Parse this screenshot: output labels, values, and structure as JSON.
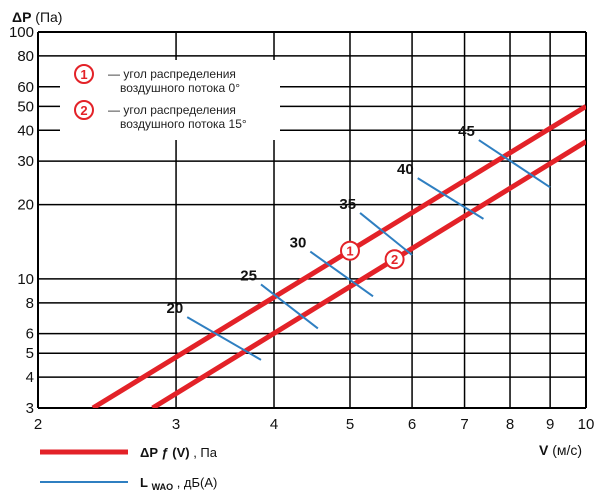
{
  "chart_data": {
    "type": "line",
    "x_scale": "log",
    "y_scale": "log",
    "xlim": [
      2,
      10
    ],
    "ylim": [
      3,
      100
    ],
    "xlabel": "V (м/с)",
    "xlabel_bold": "V",
    "xlabel_unit": "(м/с)",
    "ylabel": "ΔP (Па)",
    "ylabel_bold": "ΔP",
    "ylabel_unit": "(Па)",
    "x_ticks": [
      2,
      3,
      4,
      5,
      6,
      7,
      8,
      9,
      10
    ],
    "y_ticks": [
      3,
      4,
      5,
      6,
      8,
      10,
      20,
      30,
      40,
      50,
      60,
      80,
      100
    ],
    "grid": true,
    "series": [
      {
        "id": "1",
        "color": "#e32228",
        "x": [
          2.35,
          10
        ],
        "y": [
          3,
          50
        ]
      },
      {
        "id": "2",
        "color": "#e32228",
        "x": [
          2.8,
          10
        ],
        "y": [
          3,
          36
        ]
      }
    ],
    "noise_lines": [
      {
        "label": "20",
        "x": [
          3.1,
          3.85
        ],
        "y": [
          7.0,
          4.7
        ]
      },
      {
        "label": "25",
        "x": [
          3.85,
          4.55
        ],
        "y": [
          9.5,
          6.3
        ]
      },
      {
        "label": "30",
        "x": [
          4.45,
          5.35
        ],
        "y": [
          12.9,
          8.5
        ]
      },
      {
        "label": "35",
        "x": [
          5.15,
          6.0
        ],
        "y": [
          18.5,
          12.5
        ]
      },
      {
        "label": "40",
        "x": [
          6.1,
          7.4
        ],
        "y": [
          25.6,
          17.5
        ]
      },
      {
        "label": "45",
        "x": [
          7.3,
          9.0
        ],
        "y": [
          36.5,
          23.5
        ]
      }
    ],
    "annotations": [
      {
        "badge": "1",
        "text_lines": [
          "— угол распределения",
          "воздушного потока 0°"
        ]
      },
      {
        "badge": "2",
        "text_lines": [
          "— угол распределения",
          "воздушного потока 15°"
        ]
      }
    ],
    "legend": [
      {
        "style": "thick-red",
        "color": "#e32228",
        "label_bold": "ΔP ƒ (V)",
        "label_rest": ", Па"
      },
      {
        "style": "thin-blue",
        "color": "#2f7fc1",
        "label_bold": "L",
        "label_sub": "WAO",
        "label_rest": ", дБ(A)"
      }
    ],
    "colors": {
      "pressure": "#e32228",
      "noise": "#2f7fc1",
      "grid": "#000000"
    }
  }
}
